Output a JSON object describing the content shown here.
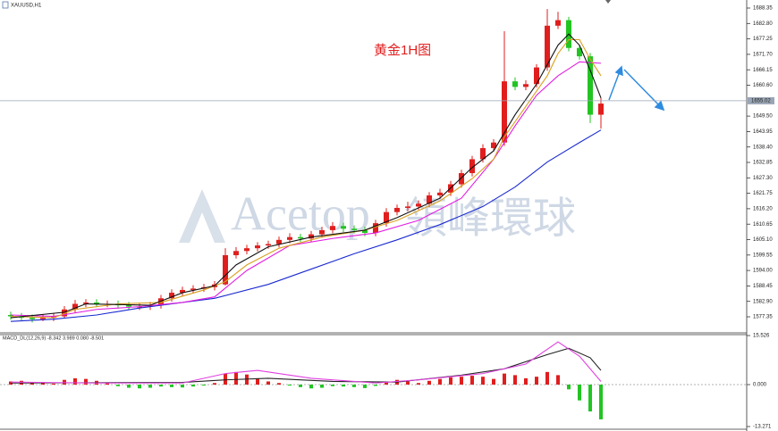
{
  "chart_data": [
    {
      "type": "candlestick",
      "title": "XAUUSD,H1",
      "annotation": "黄金1H图",
      "watermark": [
        "Acetop",
        "領峰環球"
      ],
      "open": [
        1578,
        1577.5,
        1577,
        1576.5,
        1577,
        1577.5,
        1580,
        1582,
        1582.5,
        1582,
        1582,
        1581.5,
        1581,
        1581,
        1581.5,
        1584,
        1586,
        1587,
        1587.5,
        1588,
        1589,
        1599.5,
        1601,
        1602,
        1603,
        1603.5,
        1605,
        1606,
        1605.5,
        1607,
        1608.5,
        1610,
        1609,
        1608.5,
        1607.5,
        1611,
        1615,
        1616.5,
        1617,
        1618,
        1621,
        1622,
        1625,
        1629,
        1634,
        1638,
        1640,
        1662,
        1660,
        1661,
        1667,
        1682,
        1684,
        1674,
        1671,
        1650
      ],
      "high": [
        1579.2,
        1578.7,
        1578.2,
        1578.2,
        1578.7,
        1581.2,
        1583.4,
        1583.7,
        1583.7,
        1583.2,
        1583.2,
        1582.7,
        1582.2,
        1582.7,
        1585.2,
        1587.2,
        1588.2,
        1588.7,
        1589.2,
        1590.2,
        1602,
        1602.4,
        1603.2,
        1604.2,
        1604.7,
        1606.2,
        1607.4,
        1607.2,
        1608.2,
        1609.7,
        1611.4,
        1611.2,
        1610.2,
        1609.7,
        1612.2,
        1616.4,
        1617.7,
        1618.7,
        1619.2,
        1622.2,
        1623.4,
        1626.2,
        1630.2,
        1635.2,
        1639.4,
        1641.2,
        1680,
        1663.4,
        1662.4,
        1668.2,
        1688,
        1687,
        1685.2,
        1675.2,
        1672.2,
        1656
      ],
      "low": [
        1576.3,
        1575.8,
        1575.3,
        1575.8,
        1575.8,
        1576.8,
        1578.8,
        1580.8,
        1580.8,
        1580.8,
        1580.3,
        1579.8,
        1579.8,
        1579.8,
        1580.3,
        1582.8,
        1584.8,
        1585.8,
        1586.3,
        1586.8,
        1588.6,
        1598.3,
        1599.8,
        1600.8,
        1601.8,
        1602.3,
        1603.8,
        1604.3,
        1604.3,
        1605.8,
        1607.3,
        1607.8,
        1607.3,
        1606.3,
        1606.3,
        1609.8,
        1613.8,
        1615.3,
        1615.8,
        1616.8,
        1619.8,
        1620.8,
        1623.8,
        1627.8,
        1632.8,
        1636.8,
        1638.8,
        1658.8,
        1658.8,
        1659.8,
        1665.8,
        1680.8,
        1672.8,
        1669.8,
        1647,
        1645
      ],
      "close": [
        1577.5,
        1577,
        1576.5,
        1577,
        1577.5,
        1580,
        1582,
        1582.5,
        1582,
        1582,
        1581.5,
        1581,
        1581,
        1581.5,
        1584,
        1586,
        1587,
        1587.5,
        1588,
        1589,
        1599.5,
        1601,
        1602,
        1603,
        1603.5,
        1605,
        1606,
        1605.5,
        1607,
        1608.5,
        1610,
        1609,
        1608.5,
        1607.5,
        1611,
        1615,
        1616.5,
        1617,
        1618,
        1621,
        1622,
        1625,
        1629,
        1634,
        1638,
        1640,
        1662,
        1660,
        1661,
        1667,
        1682,
        1684,
        1674,
        1671,
        1650,
        1654
      ],
      "up_color": "#e01e1e",
      "down_color": "#22c422",
      "series": [
        {
          "color": "#1a2ad0",
          "x": [
            0,
            4,
            8,
            12,
            16,
            19,
            24,
            28,
            32,
            36,
            40,
            44,
            47,
            50,
            53,
            55
          ],
          "values": [
            1575.7,
            1576.5,
            1578,
            1580.5,
            1582.5,
            1584,
            1589,
            1594.5,
            1600,
            1605,
            1610.5,
            1617,
            1624,
            1633,
            1640,
            1644.5
          ]
        },
        {
          "color": "#e21ee0",
          "x": [
            0,
            4,
            8,
            12,
            16,
            19,
            22,
            26,
            30,
            34,
            38,
            42,
            45,
            47,
            49,
            51,
            53,
            55
          ],
          "values": [
            1578,
            1577.5,
            1580,
            1581,
            1582.5,
            1584.5,
            1594,
            1603,
            1605.5,
            1607.5,
            1612,
            1620,
            1634,
            1646,
            1657,
            1664,
            1669,
            1668.5
          ]
        },
        {
          "color": "#d9a020",
          "x": [
            0,
            4,
            6,
            10,
            14,
            18,
            20,
            22,
            25,
            29,
            33,
            36,
            40,
            43,
            45,
            46,
            48,
            50,
            51,
            52,
            53,
            54,
            55
          ],
          "values": [
            1577.5,
            1577,
            1580,
            1582,
            1582.5,
            1587,
            1590,
            1596,
            1602,
            1606,
            1608.5,
            1612,
            1619,
            1627,
            1634,
            1642,
            1653,
            1664,
            1672,
            1677,
            1677,
            1670,
            1664
          ]
        },
        {
          "color": "#111111",
          "x": [
            0,
            5,
            7,
            13,
            16,
            19,
            21,
            24,
            28,
            33,
            36,
            40,
            43,
            45,
            47,
            49,
            50,
            51,
            52,
            53,
            54,
            55
          ],
          "values": [
            1577,
            1579,
            1582,
            1581.5,
            1586,
            1588.5,
            1596,
            1602.5,
            1606,
            1608.5,
            1613,
            1620,
            1631,
            1637,
            1650,
            1661,
            1668,
            1675,
            1679,
            1675,
            1666,
            1656
          ]
        }
      ],
      "ylim": [
        1571.58,
        1691.24
      ],
      "yticks": [
        1688.35,
        {
          "value": 1682.8,
          "label": "1682.80"
        },
        1677.25,
        {
          "value": 1671.7,
          "label": "1671.70"
        },
        1666.15,
        {
          "value": 1660.6,
          "label": "1660.60"
        },
        {
          "value": 1649.5,
          "label": "1649.50"
        },
        1643.95,
        {
          "value": 1638.4,
          "label": "1638.40"
        },
        1632.85,
        {
          "value": 1627.3,
          "label": "1627.30"
        },
        1621.75,
        {
          "value": 1616.2,
          "label": "1616.20"
        },
        1610.65,
        {
          "value": 1605.1,
          "label": "1605.10"
        },
        1599.55,
        {
          "value": 1594,
          "label": "1594.00"
        },
        1588.45,
        {
          "value": 1582.9,
          "label": "1582.90"
        },
        1577.35
      ],
      "current_price": 1655.02,
      "current_price_color": "#9aa6b6"
    },
    {
      "type": "macd",
      "title": "MACD_DL(12,26,9) -8.342 3.989 0.080 -8.501",
      "values": [
        1,
        1.2,
        0.8,
        0.5,
        0.3,
        1.5,
        2,
        1.8,
        1.2,
        0.5,
        -0.5,
        -1,
        -1.2,
        -1,
        -0.6,
        -0.8,
        -0.9,
        -0.6,
        -0.3,
        0.5,
        3.5,
        4,
        3.2,
        2,
        1,
        0.5,
        -0.3,
        -0.8,
        -1.2,
        -1,
        -0.5,
        -0.6,
        -0.8,
        -1.1,
        -0.4,
        0.8,
        1.5,
        1,
        0.5,
        1.2,
        1.8,
        2.3,
        2.5,
        2.8,
        2.5,
        1.8,
        3.5,
        3,
        2,
        2.5,
        4,
        3,
        -1.5,
        -5,
        -8.5,
        -11
      ],
      "pos_color": "#e01e1e",
      "neg_color": "#22c422",
      "series": [
        {
          "color": "#222222",
          "x": [
            0,
            8,
            16,
            20,
            24,
            30,
            36,
            42,
            46,
            50,
            52,
            54,
            55
          ],
          "values": [
            0.5,
            0.6,
            0.7,
            1.5,
            2,
            1,
            0.8,
            3,
            5,
            9.5,
            11.5,
            8.5,
            4.5
          ]
        },
        {
          "color": "#e040e0",
          "x": [
            0,
            8,
            16,
            20,
            23,
            28,
            34,
            38,
            44,
            48,
            51,
            53,
            55
          ],
          "values": [
            0.8,
            0.5,
            0.5,
            3.5,
            4.5,
            2,
            0.5,
            1.5,
            3.5,
            6.5,
            13.5,
            9,
            1
          ]
        }
      ],
      "ylim": [
        -14.12,
        15.82
      ],
      "yticks": [
        15.526,
        {
          "value": 0,
          "label": "0.000"
        },
        -13.271
      ],
      "zero_line": true
    }
  ]
}
